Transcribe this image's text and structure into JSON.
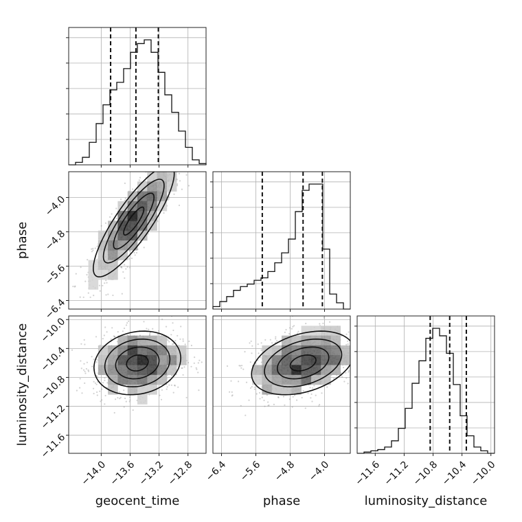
{
  "chart_data": {
    "type": "corner",
    "parameters": [
      "geocent_time",
      "phase",
      "luminosity_distance"
    ],
    "ranges": {
      "geocent_time": [
        -14.45,
        -12.55
      ],
      "phase": [
        -6.6,
        -3.4
      ],
      "luminosity_distance": [
        -11.85,
        -9.95
      ]
    },
    "ticks": {
      "geocent_time": [
        -14.0,
        -13.6,
        -13.2,
        -12.8
      ],
      "phase": [
        -6.4,
        -5.6,
        -4.8,
        -4.0
      ],
      "luminosity_distance": [
        -11.6,
        -11.2,
        -10.8,
        -10.4,
        -10.0
      ]
    },
    "tick_labels": {
      "geocent_time": [
        "−14.0",
        "−13.6",
        "−13.2",
        "−12.8"
      ],
      "phase": [
        "−6.4",
        "−5.6",
        "−4.8",
        "−4.0"
      ],
      "luminosity_distance": [
        "−11.6",
        "−11.2",
        "−10.8",
        "−10.4",
        "−10.0"
      ]
    },
    "quantiles": {
      "geocent_time": [
        -13.87,
        -13.52,
        -13.21
      ],
      "phase": [
        -5.45,
        -4.5,
        -4.05
      ],
      "luminosity_distance": [
        -10.84,
        -10.57,
        -10.34
      ]
    },
    "histograms": {
      "geocent_time": [
        0.0,
        0.02,
        0.06,
        0.18,
        0.33,
        0.48,
        0.6,
        0.66,
        0.77,
        0.9,
        0.97,
        1.0,
        0.9,
        0.74,
        0.56,
        0.42,
        0.27,
        0.14,
        0.04,
        0.01
      ],
      "phase": [
        0.02,
        0.06,
        0.1,
        0.15,
        0.18,
        0.2,
        0.23,
        0.25,
        0.3,
        0.37,
        0.45,
        0.56,
        0.78,
        0.95,
        1.0,
        1.0,
        0.48,
        0.12,
        0.05,
        0.0
      ],
      "luminosity_distance": [
        0.0,
        0.01,
        0.02,
        0.03,
        0.05,
        0.1,
        0.2,
        0.36,
        0.56,
        0.74,
        0.92,
        1.0,
        0.94,
        0.8,
        0.55,
        0.3,
        0.14,
        0.05,
        0.02,
        0.0
      ]
    },
    "joint": [
      {
        "x": "geocent_time",
        "y": "phase",
        "mean": [
          -13.55,
          -4.55
        ],
        "sigma": [
          0.28,
          0.65
        ],
        "rho": 0.85,
        "samples": 1200
      },
      {
        "x": "geocent_time",
        "y": "luminosity_distance",
        "mean": [
          -13.5,
          -10.6
        ],
        "sigma": [
          0.3,
          0.22
        ],
        "rho": 0.15,
        "samples": 1100
      },
      {
        "x": "phase",
        "y": "luminosity_distance",
        "mean": [
          -4.5,
          -10.6
        ],
        "sigma": [
          0.6,
          0.22
        ],
        "rho": 0.35,
        "samples": 1100
      }
    ],
    "grid": true
  }
}
